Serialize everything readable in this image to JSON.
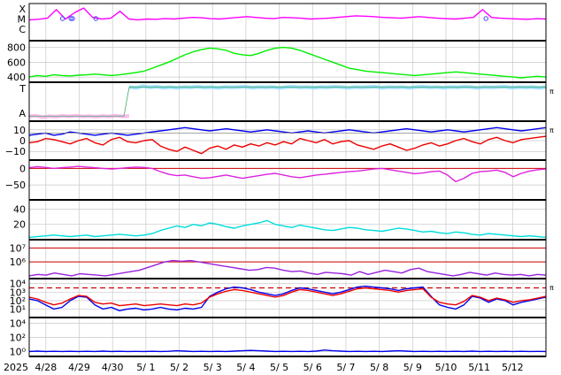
{
  "chart_data": {
    "type": "line",
    "description_start": "2025",
    "x_tick_labels": [
      "4/28",
      "4/29",
      "4/30",
      "5/ 1",
      "5/ 2",
      "5/ 3",
      "5/ 4",
      "5/ 5",
      "5/ 6",
      "5/ 7",
      "5/ 8",
      "5/ 9",
      "5/10",
      "5/11",
      "5/12"
    ],
    "x_range_days": [
      0,
      15.5
    ],
    "first_tick_day": 0.5,
    "panels": [
      {
        "key": "flares",
        "ytick_labels": [
          "X",
          "M",
          "C"
        ],
        "series": [
          {
            "color": "#ff00ff",
            "values": [
              0.15,
              0.18,
              0.25,
              0.8,
              0.2,
              0.6,
              0.9,
              0.3,
              0.2,
              0.25,
              0.7,
              0.2,
              0.15,
              0.2,
              0.18,
              0.22,
              0.2,
              0.25,
              0.3,
              0.28,
              0.22,
              0.2,
              0.25,
              0.3,
              0.35,
              0.3,
              0.25,
              0.22,
              0.3,
              0.28,
              0.25,
              0.2,
              0.22,
              0.25,
              0.3,
              0.35,
              0.4,
              0.38,
              0.35,
              0.3,
              0.28,
              0.25,
              0.3,
              0.35,
              0.3,
              0.25,
              0.22,
              0.2,
              0.25,
              0.3,
              0.8,
              0.3,
              0.25,
              0.22,
              0.2,
              0.18,
              0.22,
              0.2
            ]
          }
        ],
        "markers": [
          {
            "day": 1.0
          },
          {
            "day": 1.25
          },
          {
            "day": 1.3
          },
          {
            "day": 2.0
          },
          {
            "day": 13.7
          }
        ],
        "right_label": ""
      },
      {
        "key": "wind_speed",
        "ytick_labels": [
          "800",
          "600",
          "400"
        ],
        "ytick_values": [
          800,
          600,
          400
        ],
        "ylim": [
          330,
          890
        ],
        "series": [
          {
            "color": "#00ee00",
            "values": [
              400,
              420,
              410,
              430,
              420,
              415,
              425,
              430,
              440,
              430,
              420,
              430,
              445,
              460,
              480,
              520,
              560,
              600,
              650,
              700,
              740,
              770,
              790,
              780,
              760,
              720,
              700,
              690,
              720,
              760,
              790,
              800,
              790,
              760,
              720,
              680,
              640,
              600,
              560,
              520,
              500,
              480,
              470,
              460,
              450,
              440,
              430,
              420,
              430,
              440,
              450,
              460,
              470,
              460,
              450,
              440,
              430,
              420,
              410,
              400,
              390,
              400,
              410,
              400
            ]
          }
        ],
        "right_label": ""
      },
      {
        "key": "polarity",
        "ytick_labels": [
          "T",
          "A"
        ],
        "series": [
          {
            "color": "#ffb0ee",
            "values": [
              -0.9,
              -0.85,
              -0.95,
              -0.88,
              -0.92,
              -0.86,
              -0.9,
              -0.85,
              -0.9,
              -0.88,
              -0.92,
              -0.87,
              -0.9,
              -0.85,
              -0.9,
              -0.88
            ]
          },
          {
            "color": "#8ad8ff",
            "values": [
              0.9,
              0.85,
              0.95,
              0.88,
              0.92,
              0.86,
              0.9,
              0.85,
              0.9,
              0.88,
              0.92,
              0.87,
              0.9,
              0.85,
              0.9,
              0.88,
              0.9,
              0.92,
              0.86,
              0.9,
              0.88,
              0.9,
              0.85,
              0.9,
              0.92,
              0.88,
              0.9,
              0.86,
              0.9,
              0.88,
              0.92,
              0.9,
              0.85,
              0.9,
              0.88,
              0.9,
              0.92,
              0.86,
              0.9,
              0.88,
              0.9,
              0.85,
              0.9,
              0.92,
              0.88,
              0.9,
              0.86,
              0.9,
              0.88,
              0.92,
              0.9,
              0.85,
              0.9,
              0.88,
              0.9,
              0.92,
              0.86,
              0.9,
              0.88,
              0.9,
              0.85,
              0.9
            ]
          }
        ],
        "right_label": "π"
      },
      {
        "key": "imf",
        "ytick_labels": [
          "10",
          "0",
          "−10"
        ],
        "ytick_values": [
          10,
          0,
          -10
        ],
        "ylim": [
          -18,
          18
        ],
        "series": [
          {
            "color": "#0000ee",
            "values": [
              5,
              6,
              7,
              5,
              6,
              8,
              7,
              6,
              5,
              6,
              7,
              6,
              5,
              6,
              7,
              8,
              9,
              10,
              11,
              12,
              11,
              10,
              9,
              10,
              11,
              10,
              9,
              8,
              9,
              10,
              9,
              8,
              7,
              8,
              9,
              8,
              7,
              8,
              9,
              10,
              9,
              8,
              7,
              8,
              9,
              10,
              11,
              10,
              9,
              8,
              9,
              10,
              9,
              8,
              9,
              10,
              11,
              12,
              11,
              10,
              9,
              10,
              11,
              12
            ]
          },
          {
            "color": "#ee0000",
            "values": [
              -2,
              -1,
              2,
              1,
              -1,
              -3,
              0,
              2,
              -2,
              -4,
              1,
              3,
              -1,
              -2,
              0,
              1,
              -5,
              -8,
              -10,
              -6,
              -9,
              -12,
              -7,
              -5,
              -8,
              -4,
              -6,
              -3,
              -5,
              -2,
              -4,
              -1,
              -3,
              2,
              0,
              -2,
              1,
              -3,
              -1,
              0,
              -4,
              -6,
              -8,
              -5,
              -3,
              -6,
              -9,
              -7,
              -4,
              -2,
              -5,
              -3,
              0,
              2,
              -1,
              -3,
              1,
              3,
              0,
              -2,
              1,
              2,
              3,
              4
            ]
          },
          {
            "color": "#888888",
            "values": [
              7,
              7,
              7,
              7,
              7,
              7,
              7,
              7,
              7,
              7,
              7,
              7,
              7,
              7,
              7,
              7,
              7,
              7,
              7,
              7,
              7,
              7,
              7,
              7,
              7,
              7,
              7,
              7,
              7,
              7,
              7,
              7,
              7,
              7,
              7,
              7,
              7,
              7,
              7,
              7,
              7,
              7,
              7,
              7,
              7,
              7,
              7,
              7,
              7,
              7,
              7,
              7,
              7,
              7,
              7,
              7,
              7,
              7,
              7,
              7,
              7,
              7,
              7,
              7
            ]
          }
        ],
        "right_label": "π"
      },
      {
        "key": "dst",
        "ytick_labels": [
          "0",
          "−50"
        ],
        "ytick_values": [
          0,
          -50
        ],
        "ylim": [
          -95,
          25
        ],
        "reference_line": 0,
        "series": [
          {
            "color": "#dd22dd",
            "values": [
              2,
              5,
              3,
              0,
              2,
              4,
              6,
              4,
              2,
              0,
              -2,
              0,
              2,
              4,
              3,
              0,
              -10,
              -18,
              -22,
              -20,
              -25,
              -30,
              -28,
              -24,
              -20,
              -25,
              -30,
              -26,
              -22,
              -18,
              -15,
              -20,
              -25,
              -28,
              -24,
              -20,
              -18,
              -15,
              -12,
              -10,
              -8,
              -5,
              -2,
              0,
              -4,
              -8,
              -12,
              -16,
              -14,
              -10,
              -8,
              -20,
              -40,
              -30,
              -15,
              -10,
              -8,
              -5,
              -12,
              -25,
              -15,
              -8,
              -4,
              -2
            ]
          }
        ],
        "right_label": ""
      },
      {
        "key": "density",
        "ytick_labels": [
          "40",
          "20"
        ],
        "ytick_values": [
          40,
          20
        ],
        "ylim": [
          0,
          52
        ],
        "series": [
          {
            "color": "#00dddd",
            "values": [
              3,
              4,
              5,
              6,
              5,
              4,
              5,
              6,
              4,
              5,
              6,
              7,
              6,
              5,
              6,
              8,
              12,
              15,
              18,
              16,
              20,
              18,
              22,
              20,
              17,
              15,
              18,
              20,
              22,
              25,
              20,
              18,
              16,
              19,
              17,
              15,
              13,
              12,
              14,
              16,
              15,
              13,
              12,
              11,
              13,
              15,
              14,
              12,
              10,
              11,
              9,
              8,
              10,
              9,
              7,
              6,
              8,
              7,
              6,
              5,
              4,
              5,
              4,
              3
            ]
          }
        ],
        "right_label": ""
      },
      {
        "key": "electron_flux",
        "ytick_labels": [
          "10⁷",
          "10⁶"
        ],
        "ytick_values": [
          7,
          6
        ],
        "ylim": [
          4.8,
          7.6
        ],
        "reference_lines": [
          7,
          6
        ],
        "series": [
          {
            "color": "#9922dd",
            "values": [
              5.0,
              5.1,
              5.05,
              5.2,
              5.1,
              5.0,
              5.15,
              5.1,
              5.05,
              5.0,
              5.1,
              5.2,
              5.3,
              5.4,
              5.6,
              5.8,
              6.0,
              6.1,
              6.05,
              6.1,
              6.0,
              5.9,
              5.8,
              5.7,
              5.6,
              5.5,
              5.4,
              5.45,
              5.6,
              5.55,
              5.4,
              5.3,
              5.35,
              5.2,
              5.1,
              5.25,
              5.2,
              5.15,
              5.05,
              5.3,
              5.1,
              5.25,
              5.4,
              5.3,
              5.2,
              5.45,
              5.55,
              5.3,
              5.2,
              5.1,
              5.0,
              5.1,
              5.25,
              5.15,
              5.05,
              5.2,
              5.1,
              5.05,
              5.1,
              5.0,
              5.1,
              5.05
            ]
          }
        ],
        "right_label": ""
      },
      {
        "key": "proton_flux",
        "ytick_labels": [
          "10⁴",
          "10³",
          "10²",
          "10¹"
        ],
        "ytick_values": [
          4,
          3,
          2,
          1
        ],
        "ylim": [
          0,
          4.6
        ],
        "dashed_line": 3.5,
        "series": [
          {
            "color": "#0000ee",
            "values": [
              2.2,
              2.0,
              1.5,
              1.0,
              1.2,
              2.0,
              2.5,
              2.4,
              1.5,
              1.0,
              1.2,
              0.8,
              1.0,
              1.1,
              0.9,
              1.0,
              1.2,
              1.0,
              0.9,
              1.1,
              1.0,
              1.2,
              2.5,
              3.0,
              3.4,
              3.6,
              3.5,
              3.3,
              3.0,
              2.8,
              2.6,
              2.8,
              3.2,
              3.5,
              3.4,
              3.2,
              3.0,
              2.8,
              3.0,
              3.3,
              3.6,
              3.7,
              3.6,
              3.5,
              3.4,
              3.2,
              3.4,
              3.5,
              3.6,
              2.5,
              1.5,
              1.2,
              1.0,
              1.5,
              2.5,
              2.3,
              1.8,
              2.2,
              2.0,
              1.5,
              1.8,
              2.0,
              2.2,
              2.4
            ]
          },
          {
            "color": "#ee0000",
            "values": [
              2.4,
              2.2,
              1.8,
              1.5,
              1.7,
              2.2,
              2.6,
              2.5,
              1.8,
              1.6,
              1.7,
              1.4,
              1.5,
              1.6,
              1.4,
              1.5,
              1.6,
              1.5,
              1.4,
              1.6,
              1.5,
              1.7,
              2.4,
              2.8,
              3.1,
              3.3,
              3.2,
              3.0,
              2.8,
              2.6,
              2.4,
              2.6,
              3.0,
              3.3,
              3.2,
              3.0,
              2.8,
              2.6,
              2.8,
              3.1,
              3.4,
              3.5,
              3.4,
              3.3,
              3.2,
              3.0,
              3.2,
              3.3,
              3.4,
              2.4,
              1.8,
              1.6,
              1.5,
              1.9,
              2.6,
              2.4,
              2.0,
              2.3,
              2.1,
              1.8,
              2.0,
              2.1,
              2.3,
              2.5
            ]
          }
        ],
        "right_label": "π"
      },
      {
        "key": "proton_high",
        "ytick_labels": [
          "10⁴",
          "10²",
          "10⁰"
        ],
        "ytick_values": [
          4,
          2,
          0
        ],
        "ylim": [
          -0.7,
          4.8
        ],
        "series": [
          {
            "color": "#0000ee",
            "values": [
              0.0,
              0.05,
              0.0,
              0.02,
              0.0,
              0.03,
              0.0,
              0.02,
              0.0,
              0.05,
              0.0,
              0.02,
              0.0,
              0.01,
              0.0,
              0.02,
              0.0,
              0.03,
              0.1,
              0.05,
              0.0,
              0.02,
              0.0,
              0.03,
              0.0,
              0.05,
              0.1,
              0.15,
              0.1,
              0.05,
              0.0,
              0.02,
              0.0,
              0.03,
              0.0,
              0.05,
              0.2,
              0.1,
              0.05,
              0.0,
              0.02,
              0.0,
              0.03,
              0.0,
              0.05,
              0.1,
              0.05,
              0.0,
              0.02,
              0.0,
              0.03,
              0.0,
              0.02,
              0.0,
              0.05,
              0.0,
              0.02,
              0.0,
              0.03,
              0.0,
              0.02,
              0.0,
              0.01,
              0.0
            ]
          }
        ],
        "right_label": ""
      }
    ]
  }
}
